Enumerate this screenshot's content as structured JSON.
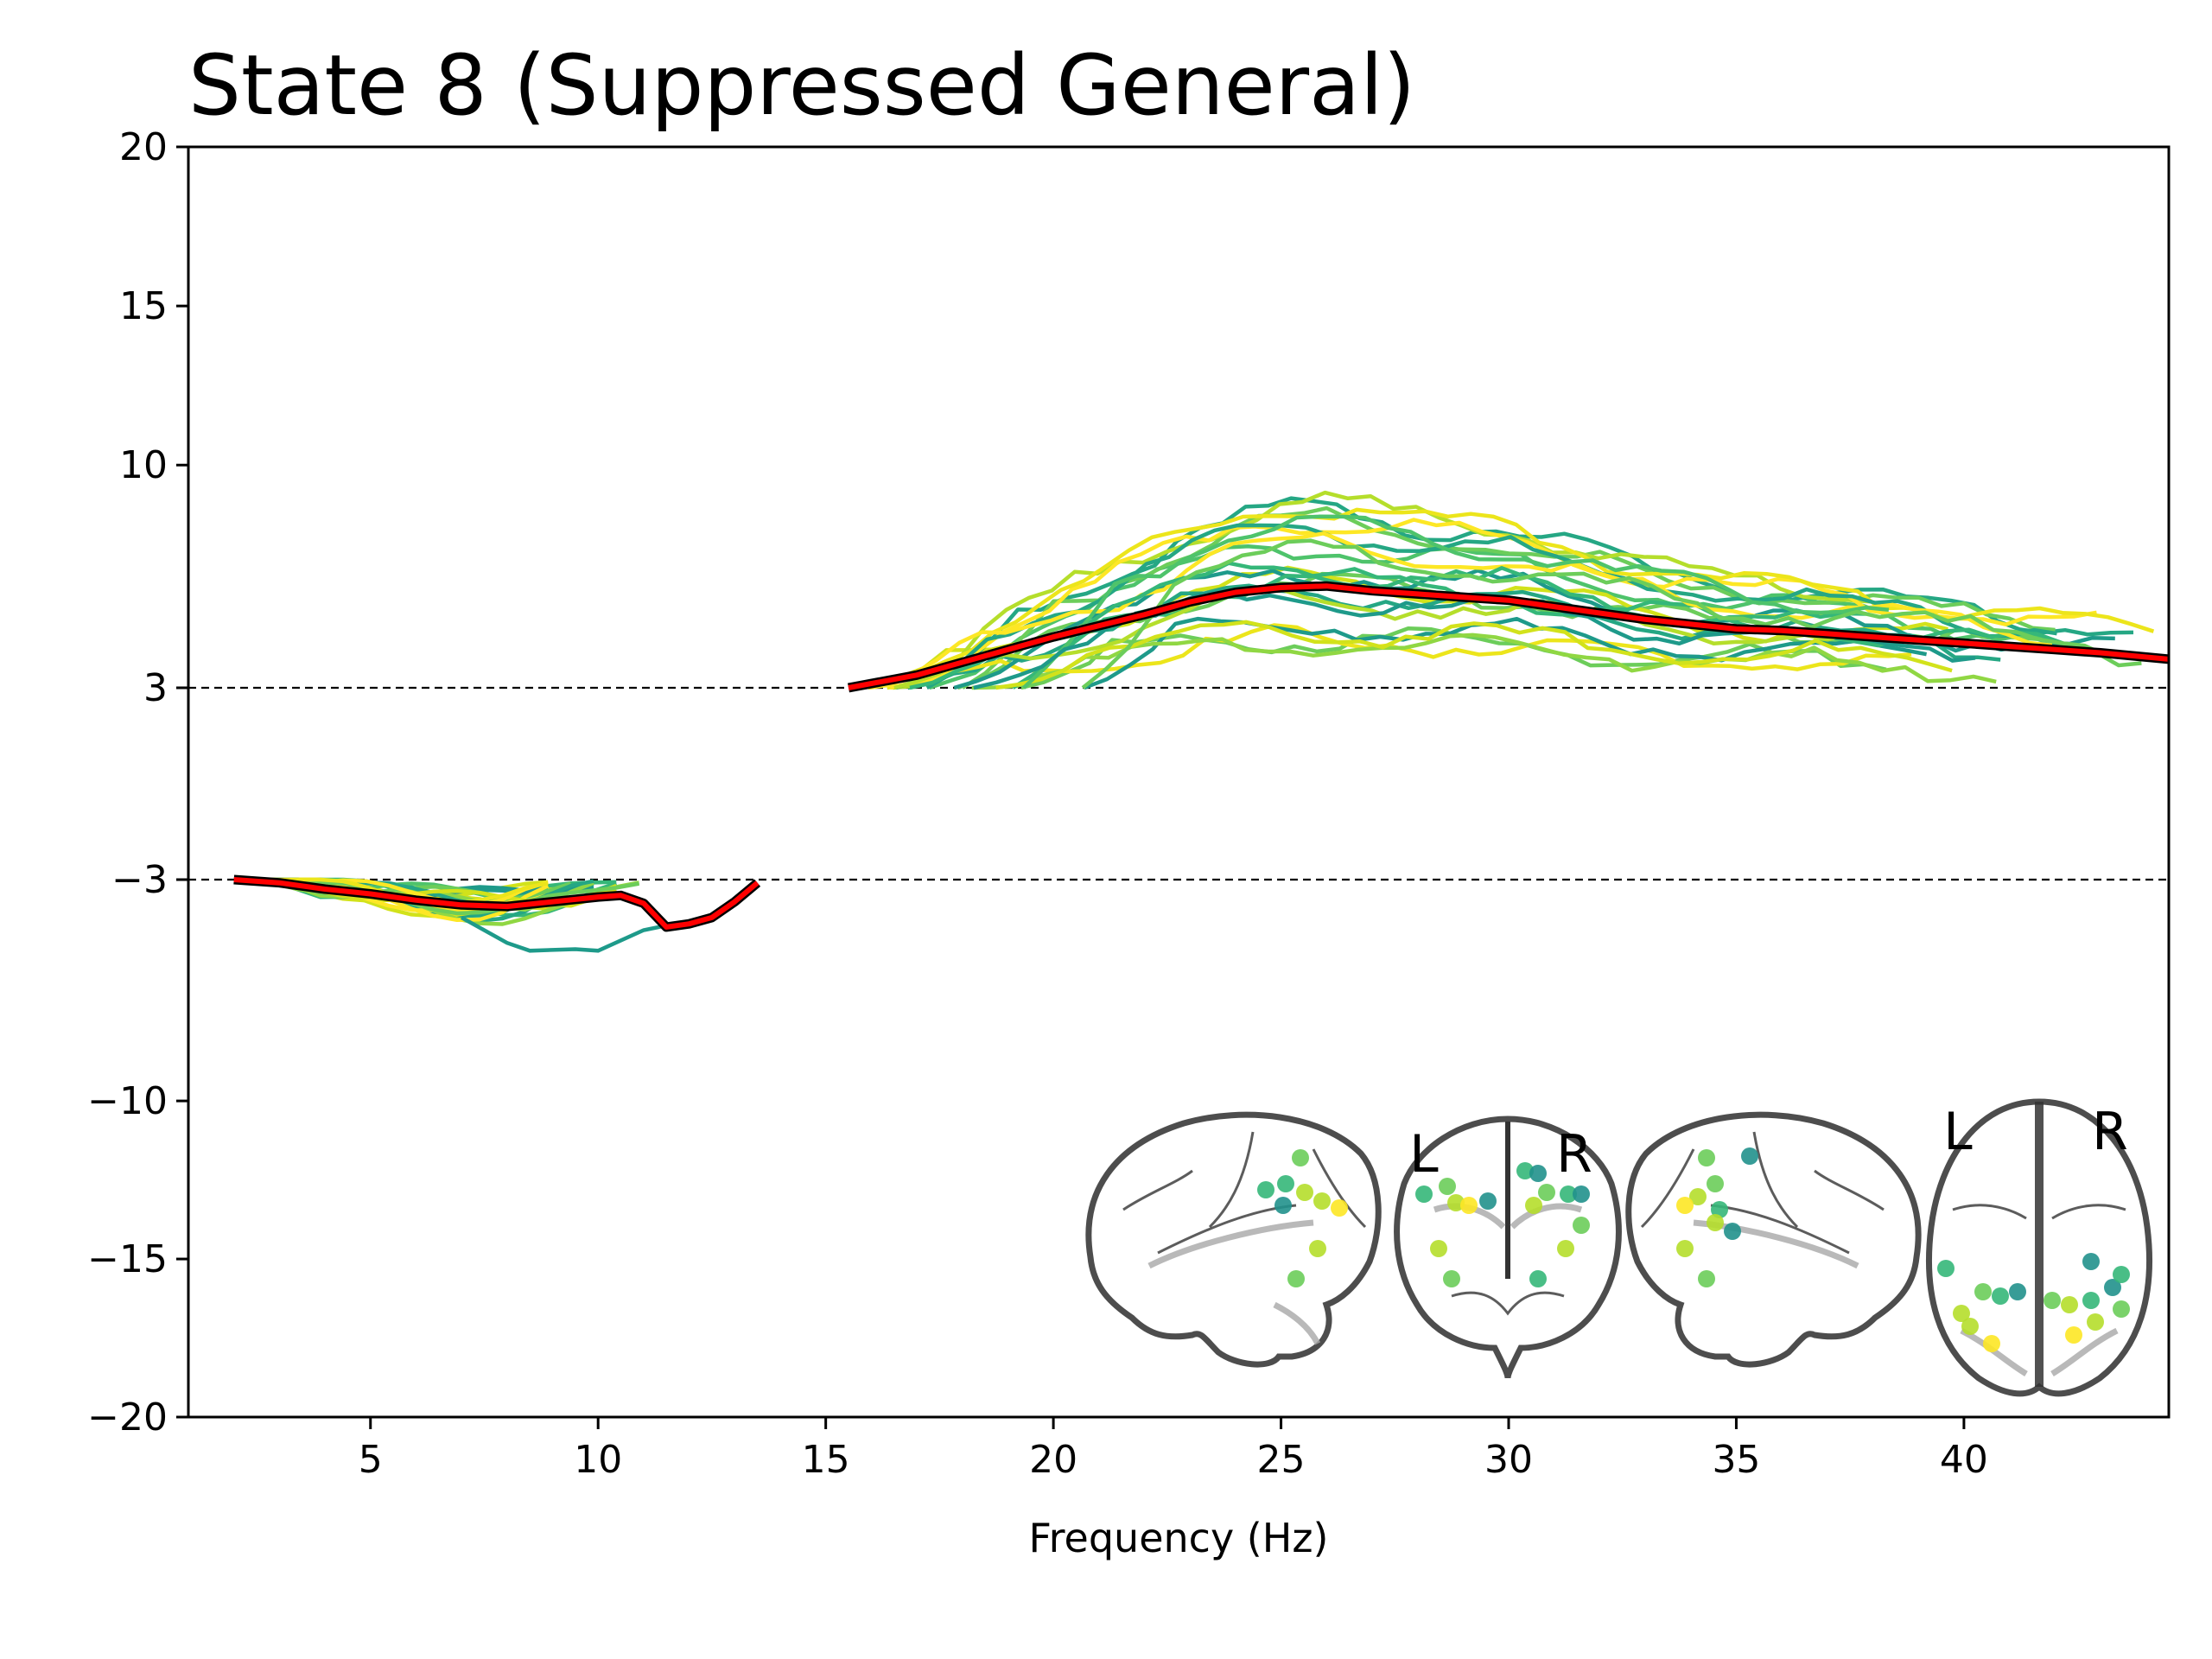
{
  "chart_data": {
    "type": "line",
    "title": "State 8 (Suppressed General)",
    "xlabel": "Frequency (Hz)",
    "ylabel": "",
    "xlim": [
      1,
      44.5
    ],
    "ylim": [
      -20,
      20
    ],
    "x_ticks": [
      5,
      10,
      15,
      20,
      25,
      30,
      35,
      40
    ],
    "y_ticks": [
      {
        "value": 20,
        "label": "20"
      },
      {
        "value": 15,
        "label": "15"
      },
      {
        "value": 10,
        "label": "10"
      },
      {
        "value": 3,
        "label": "3"
      },
      {
        "value": -3,
        "label": "−3"
      },
      {
        "value": -10,
        "label": "−10"
      },
      {
        "value": -15,
        "label": "−15"
      },
      {
        "value": -20,
        "label": "−20"
      }
    ],
    "y_scale": "broken: values between -3 and 3 are omitted; the 3 and -3 ticks are spaced as far apart as 3 and 10",
    "thresholds": [
      3,
      -3
    ],
    "threshold_style": "black dashed",
    "mean_series": {
      "color": "#ff0000",
      "outline": "#000000",
      "low_band": {
        "x": [
          2,
          3,
          4,
          5,
          6,
          7,
          8,
          9,
          10,
          10.5,
          11,
          11.5,
          12,
          12.5,
          13,
          13.5
        ],
        "y": [
          -3.0,
          -3.1,
          -3.3,
          -3.45,
          -3.65,
          -3.8,
          -3.85,
          -3.7,
          -3.55,
          -3.5,
          -3.75,
          -4.5,
          -4.4,
          -4.2,
          -3.7,
          -3.1
        ]
      },
      "high_band": {
        "x": [
          15.5,
          17,
          18,
          19,
          20,
          21,
          22,
          23,
          24,
          25,
          26,
          27,
          28,
          29,
          30,
          31,
          32,
          33,
          34,
          35,
          36,
          37,
          38,
          39,
          40,
          41,
          42,
          43,
          44.5
        ],
        "y": [
          3.0,
          3.4,
          3.8,
          4.2,
          4.6,
          4.95,
          5.3,
          5.7,
          6.0,
          6.15,
          6.2,
          6.05,
          5.95,
          5.85,
          5.75,
          5.55,
          5.35,
          5.15,
          5.0,
          4.85,
          4.8,
          4.7,
          4.6,
          4.5,
          4.4,
          4.3,
          4.2,
          4.1,
          3.9
        ]
      }
    },
    "parcel_series_count": 23,
    "parcel_series_colormap": [
      "#1e9a8a",
      "#25a784",
      "#35b779",
      "#4ec36b",
      "#6ccd5a",
      "#90d743",
      "#b5de2b",
      "#d2e21b",
      "#ece51b",
      "#fde725"
    ]
  },
  "brain_insets": {
    "views": [
      "left-lateral",
      "coronal",
      "right-lateral",
      "axial"
    ],
    "coronal_left_label": "L",
    "coronal_right_label": "R",
    "axial_left_label": "L",
    "axial_right_label": "R",
    "marker_colors": [
      "#21918c",
      "#35b779",
      "#6ccd5a",
      "#b5de2b",
      "#fde725"
    ]
  }
}
